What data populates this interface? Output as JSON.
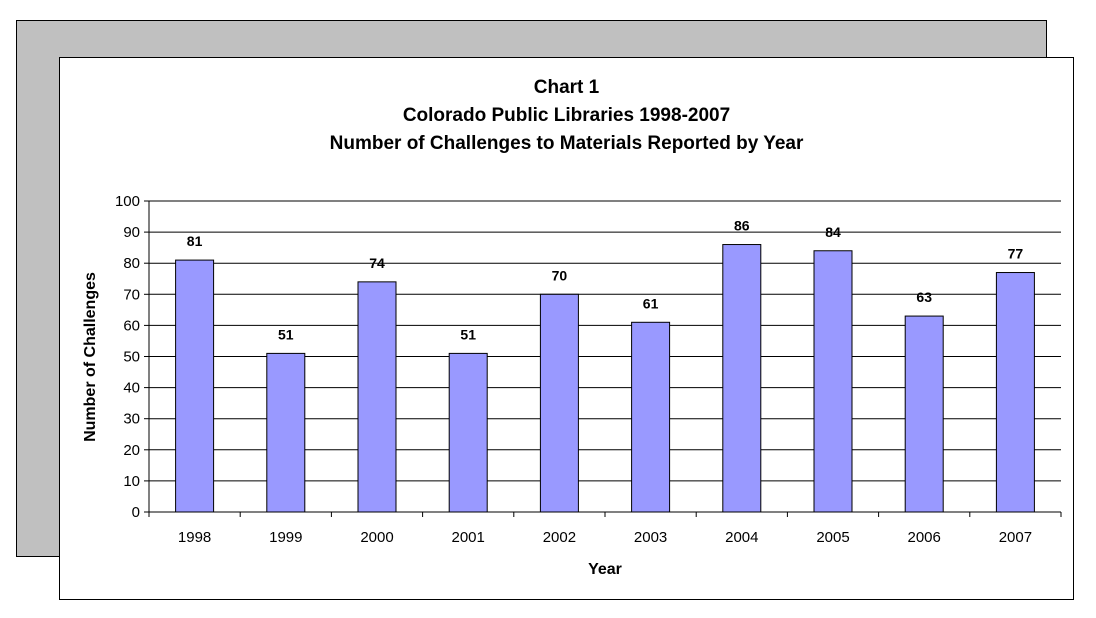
{
  "chart_data": {
    "type": "bar",
    "title": "Chart 1",
    "subtitle_lines": [
      "Colorado Public Libraries 1998-2007",
      "Number of Challenges to Materials Reported by Year"
    ],
    "xlabel": "Year",
    "ylabel": "Number of Challenges",
    "categories": [
      "1998",
      "1999",
      "2000",
      "2001",
      "2002",
      "2003",
      "2004",
      "2005",
      "2006",
      "2007"
    ],
    "values": [
      81,
      51,
      74,
      51,
      70,
      61,
      86,
      84,
      63,
      77
    ],
    "data_labels": [
      "81",
      "51",
      "74",
      "51",
      "70",
      "61",
      "86",
      "84",
      "63",
      "77"
    ],
    "ylim": [
      0,
      100
    ],
    "y_ticks": [
      0,
      10,
      20,
      30,
      40,
      50,
      60,
      70,
      80,
      90,
      100
    ],
    "grid": true,
    "legend": "none",
    "colors": {
      "bar_fill": "#9999ff",
      "bar_stroke": "#000000",
      "gridline": "#000000",
      "shadow_panel": "#c0c0c0"
    }
  }
}
